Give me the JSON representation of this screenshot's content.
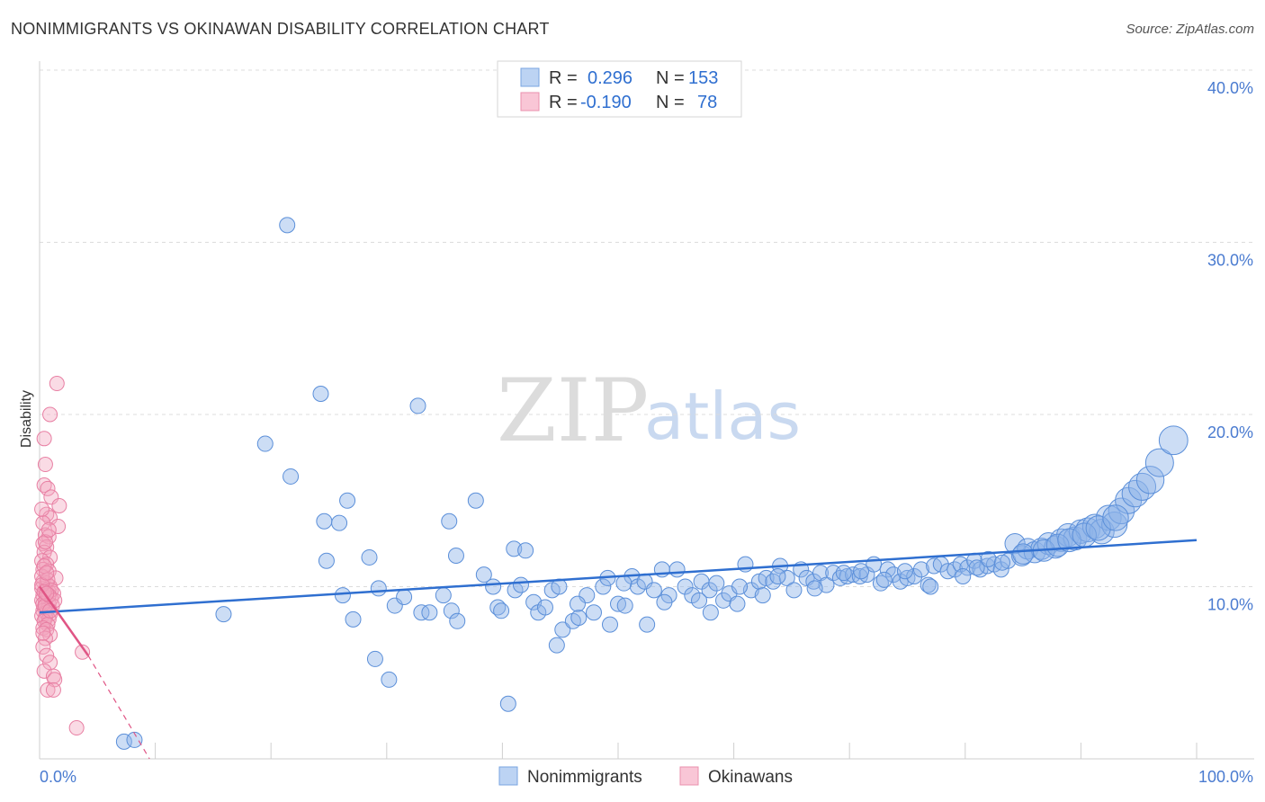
{
  "chart_data": {
    "type": "scatter",
    "title": "NONIMMIGRANTS VS OKINAWAN DISABILITY CORRELATION CHART",
    "source": "Source: ZipAtlas.com",
    "ylabel": "Disability",
    "xlabel": "",
    "xlim": [
      0,
      100
    ],
    "ylim": [
      0,
      40
    ],
    "x_tick_labels": [
      "0.0%",
      "100.0%"
    ],
    "y_ticks": [
      10,
      20,
      30,
      40
    ],
    "y_tick_labels": [
      "10.0%",
      "20.0%",
      "30.0%",
      "40.0%"
    ],
    "grid": true,
    "watermark": {
      "zip": "ZIP",
      "atlas": "atlas"
    },
    "legend": [
      {
        "r_label": "R =",
        "r_value": "0.296",
        "n_label": "N =",
        "n_value": "153",
        "color": "#8fb3e8"
      },
      {
        "r_label": "R =",
        "r_value": "-0.190",
        "n_label": "N =",
        "n_value": "78",
        "color": "#f3a6bf"
      }
    ],
    "series": [
      {
        "name": "Nonimmigrants",
        "color": "#8fb3e8",
        "stroke": "#5b8fd9",
        "trend": {
          "x": [
            0,
            100
          ],
          "y": [
            8.5,
            12.7
          ],
          "color": "#2f6fd0"
        },
        "points": [
          [
            21.4,
            31.0
          ],
          [
            24.3,
            21.2
          ],
          [
            32.7,
            20.5
          ],
          [
            19.5,
            18.3
          ],
          [
            21.7,
            16.4
          ],
          [
            26.6,
            15.0
          ],
          [
            37.7,
            15.0
          ],
          [
            24.6,
            13.8
          ],
          [
            25.9,
            13.7
          ],
          [
            35.4,
            13.8
          ],
          [
            41.0,
            12.2
          ],
          [
            42.0,
            12.1
          ],
          [
            24.8,
            11.5
          ],
          [
            28.5,
            11.7
          ],
          [
            36.0,
            11.8
          ],
          [
            15.9,
            8.4
          ],
          [
            26.2,
            9.5
          ],
          [
            27.1,
            8.1
          ],
          [
            29.3,
            9.9
          ],
          [
            30.7,
            8.9
          ],
          [
            31.5,
            9.4
          ],
          [
            33.0,
            8.5
          ],
          [
            33.7,
            8.5
          ],
          [
            34.9,
            9.5
          ],
          [
            35.6,
            8.6
          ],
          [
            36.1,
            8.0
          ],
          [
            38.4,
            10.7
          ],
          [
            39.2,
            10.0
          ],
          [
            39.6,
            8.8
          ],
          [
            39.9,
            8.6
          ],
          [
            41.1,
            9.8
          ],
          [
            41.6,
            10.1
          ],
          [
            42.7,
            9.1
          ],
          [
            43.1,
            8.5
          ],
          [
            43.7,
            8.8
          ],
          [
            44.3,
            9.8
          ],
          [
            44.9,
            10.0
          ],
          [
            45.2,
            7.5
          ],
          [
            46.1,
            8.0
          ],
          [
            46.6,
            8.2
          ],
          [
            47.3,
            9.5
          ],
          [
            47.9,
            8.5
          ],
          [
            48.7,
            10.0
          ],
          [
            49.1,
            10.5
          ],
          [
            50.0,
            9.0
          ],
          [
            50.6,
            8.9
          ],
          [
            51.2,
            10.6
          ],
          [
            51.7,
            10.0
          ],
          [
            52.3,
            10.3
          ],
          [
            53.1,
            9.8
          ],
          [
            53.8,
            11.0
          ],
          [
            54.4,
            9.5
          ],
          [
            55.1,
            11.0
          ],
          [
            55.8,
            10.0
          ],
          [
            56.4,
            9.5
          ],
          [
            57.2,
            10.3
          ],
          [
            57.9,
            9.8
          ],
          [
            58.5,
            10.2
          ],
          [
            59.1,
            9.2
          ],
          [
            59.6,
            9.6
          ],
          [
            60.3,
            9.0
          ],
          [
            61.0,
            11.3
          ],
          [
            61.5,
            9.8
          ],
          [
            62.2,
            10.3
          ],
          [
            62.8,
            10.5
          ],
          [
            63.4,
            10.3
          ],
          [
            64.0,
            11.2
          ],
          [
            64.6,
            10.5
          ],
          [
            65.2,
            9.8
          ],
          [
            65.8,
            11.0
          ],
          [
            66.3,
            10.5
          ],
          [
            66.9,
            10.3
          ],
          [
            67.5,
            10.8
          ],
          [
            68.0,
            10.1
          ],
          [
            68.6,
            10.8
          ],
          [
            69.2,
            10.5
          ],
          [
            69.8,
            10.6
          ],
          [
            70.3,
            10.7
          ],
          [
            70.9,
            10.6
          ],
          [
            71.5,
            10.7
          ],
          [
            72.1,
            11.3
          ],
          [
            72.7,
            10.2
          ],
          [
            73.3,
            11.0
          ],
          [
            73.8,
            10.7
          ],
          [
            74.4,
            10.3
          ],
          [
            75.0,
            10.5
          ],
          [
            75.6,
            10.6
          ],
          [
            76.2,
            11.0
          ],
          [
            76.8,
            10.1
          ],
          [
            77.3,
            11.2
          ],
          [
            77.9,
            11.3
          ],
          [
            78.5,
            10.9
          ],
          [
            79.1,
            11.0
          ],
          [
            79.6,
            11.3
          ],
          [
            80.2,
            11.1
          ],
          [
            80.8,
            11.5
          ],
          [
            81.3,
            11.0
          ],
          [
            81.9,
            11.2
          ],
          [
            82.5,
            11.3
          ],
          [
            83.1,
            11.0
          ],
          [
            83.7,
            11.5
          ],
          [
            84.3,
            12.5
          ],
          [
            84.9,
            11.8
          ],
          [
            85.4,
            12.2
          ],
          [
            86.0,
            12.0
          ],
          [
            86.6,
            12.2
          ],
          [
            87.2,
            12.5
          ],
          [
            87.8,
            12.3
          ],
          [
            88.3,
            12.7
          ],
          [
            88.9,
            13.0
          ],
          [
            89.5,
            12.8
          ],
          [
            90.0,
            13.2
          ],
          [
            90.6,
            13.3
          ],
          [
            91.2,
            13.5
          ],
          [
            91.8,
            13.2
          ],
          [
            92.4,
            14.0
          ],
          [
            92.9,
            13.6
          ],
          [
            93.5,
            14.4
          ],
          [
            94.1,
            15.0
          ],
          [
            94.7,
            15.4
          ],
          [
            95.3,
            15.8
          ],
          [
            96.0,
            16.2
          ],
          [
            96.8,
            17.2
          ],
          [
            98.0,
            18.5
          ],
          [
            7.3,
            1.0
          ],
          [
            8.2,
            1.1
          ],
          [
            29.0,
            5.8
          ],
          [
            30.2,
            4.6
          ],
          [
            40.5,
            3.2
          ],
          [
            44.7,
            6.6
          ],
          [
            46.5,
            9.0
          ],
          [
            49.3,
            7.8
          ],
          [
            50.5,
            10.2
          ],
          [
            52.5,
            7.8
          ],
          [
            54.0,
            9.1
          ],
          [
            57.0,
            9.2
          ],
          [
            58.0,
            8.5
          ],
          [
            60.5,
            10.0
          ],
          [
            62.5,
            9.5
          ],
          [
            63.8,
            10.6
          ],
          [
            67.0,
            9.9
          ],
          [
            69.5,
            10.8
          ],
          [
            71.0,
            10.9
          ],
          [
            73.0,
            10.4
          ],
          [
            74.8,
            10.9
          ],
          [
            77.0,
            10.0
          ],
          [
            79.8,
            10.6
          ],
          [
            81.0,
            11.1
          ],
          [
            82.0,
            11.6
          ],
          [
            83.2,
            11.4
          ],
          [
            85.0,
            11.9
          ],
          [
            86.8,
            12.1
          ],
          [
            88.0,
            12.4
          ],
          [
            89.0,
            12.7
          ],
          [
            90.3,
            13.0
          ],
          [
            91.5,
            13.4
          ],
          [
            93.0,
            14.0
          ]
        ]
      },
      {
        "name": "Okinawans",
        "color": "#f3a6bf",
        "stroke": "#e87fa3",
        "trend": {
          "x": [
            0,
            4.2
          ],
          "y": [
            10.0,
            6.0
          ],
          "color": "#e05585"
        },
        "trend_ext": {
          "x": [
            4.2,
            9.5
          ],
          "y": [
            6.0,
            0.0
          ]
        },
        "points": [
          [
            1.5,
            21.8
          ],
          [
            0.9,
            20.0
          ],
          [
            0.4,
            18.6
          ],
          [
            0.5,
            17.1
          ],
          [
            0.4,
            15.9
          ],
          [
            0.7,
            15.7
          ],
          [
            1.0,
            15.2
          ],
          [
            1.7,
            14.7
          ],
          [
            0.6,
            14.2
          ],
          [
            0.9,
            14.0
          ],
          [
            0.3,
            13.7
          ],
          [
            1.6,
            13.5
          ],
          [
            0.5,
            13.0
          ],
          [
            0.8,
            12.9
          ],
          [
            0.3,
            12.5
          ],
          [
            0.6,
            12.3
          ],
          [
            0.4,
            12.0
          ],
          [
            0.9,
            11.7
          ],
          [
            0.2,
            11.5
          ],
          [
            0.6,
            11.3
          ],
          [
            0.3,
            11.0
          ],
          [
            0.8,
            10.9
          ],
          [
            1.4,
            10.5
          ],
          [
            0.3,
            10.3
          ],
          [
            0.6,
            10.2
          ],
          [
            0.9,
            10.0
          ],
          [
            0.2,
            9.9
          ],
          [
            0.5,
            9.8
          ],
          [
            0.8,
            9.7
          ],
          [
            1.2,
            9.6
          ],
          [
            0.3,
            9.5
          ],
          [
            0.6,
            9.4
          ],
          [
            1.0,
            9.3
          ],
          [
            0.2,
            9.2
          ],
          [
            0.5,
            9.1
          ],
          [
            0.8,
            9.0
          ],
          [
            1.1,
            8.9
          ],
          [
            0.4,
            8.8
          ],
          [
            0.7,
            8.7
          ],
          [
            0.3,
            8.6
          ],
          [
            0.6,
            8.5
          ],
          [
            0.9,
            8.4
          ],
          [
            0.2,
            8.3
          ],
          [
            0.5,
            8.2
          ],
          [
            0.8,
            8.1
          ],
          [
            0.4,
            8.0
          ],
          [
            0.7,
            7.8
          ],
          [
            0.3,
            7.6
          ],
          [
            0.6,
            7.5
          ],
          [
            0.9,
            7.2
          ],
          [
            0.5,
            7.0
          ],
          [
            0.3,
            6.5
          ],
          [
            0.6,
            6.0
          ],
          [
            0.9,
            5.6
          ],
          [
            0.4,
            5.1
          ],
          [
            1.2,
            4.8
          ],
          [
            1.3,
            4.6
          ],
          [
            0.7,
            4.0
          ],
          [
            1.2,
            4.0
          ],
          [
            3.7,
            6.2
          ],
          [
            3.2,
            1.8
          ],
          [
            0.2,
            10.6
          ],
          [
            0.4,
            11.2
          ],
          [
            0.7,
            10.4
          ],
          [
            1.0,
            9.8
          ],
          [
            0.3,
            9.0
          ],
          [
            0.5,
            8.9
          ],
          [
            0.8,
            9.5
          ],
          [
            1.3,
            9.2
          ],
          [
            0.2,
            10.1
          ],
          [
            0.6,
            10.8
          ],
          [
            0.4,
            9.7
          ],
          [
            0.9,
            8.6
          ],
          [
            0.3,
            7.3
          ],
          [
            0.5,
            12.6
          ],
          [
            0.8,
            13.3
          ],
          [
            0.2,
            14.5
          ],
          [
            0.6,
            9.6
          ]
        ]
      }
    ]
  }
}
